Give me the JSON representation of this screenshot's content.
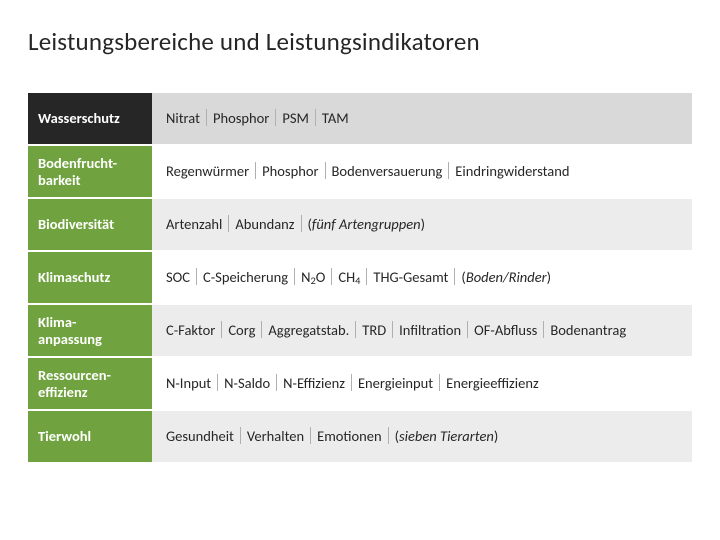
{
  "title": "Leistungsbereiche und Leistungsindikatoren",
  "colors": {
    "row0_label_bg": "#262626",
    "row_label_bg": "#70a33f",
    "row0_content_bg": "#d8d9d8",
    "row_content_bg_odd": "#ffffff",
    "row_content_bg_even": "#ececec",
    "label_text": "#ffffff",
    "content_text": "#262626"
  },
  "rows": [
    {
      "label": "Wasserschutz",
      "indicators": [
        "Nitrat",
        "Phosphor",
        "PSM",
        "TAM"
      ],
      "note": null
    },
    {
      "label": "Bodenfrucht-barkeit",
      "indicators": [
        "Regenwürmer",
        "Phosphor",
        "Bodenversauerung",
        "Eindringwiderstand"
      ],
      "note": null
    },
    {
      "label": "Biodiversität",
      "indicators": [
        "Artenzahl",
        "Abundanz"
      ],
      "note": "fünf Artengruppen"
    },
    {
      "label": "Klimaschutz",
      "indicators": [
        "SOC",
        "C-Speicherung",
        "N<sub>2</sub>O",
        "CH<sub>4</sub>",
        "THG-Gesamt"
      ],
      "note": "Boden/Rinder"
    },
    {
      "label": "Klima-anpassung",
      "indicators": [
        "C-Faktor",
        "Corg",
        "Aggregatstab.",
        "TRD",
        "Infiltration",
        "OF-Abfluss",
        "Bodenantrag"
      ],
      "note": null
    },
    {
      "label": "Ressourcen-effizienz",
      "indicators": [
        "N-Input",
        "N-Saldo",
        "N-Effizienz",
        "Energieinput",
        "Energieeffizienz"
      ],
      "note": null
    },
    {
      "label": "Tierwohl",
      "indicators": [
        "Gesundheit",
        "Verhalten",
        "Emotionen"
      ],
      "note": "sieben Tierarten"
    }
  ]
}
